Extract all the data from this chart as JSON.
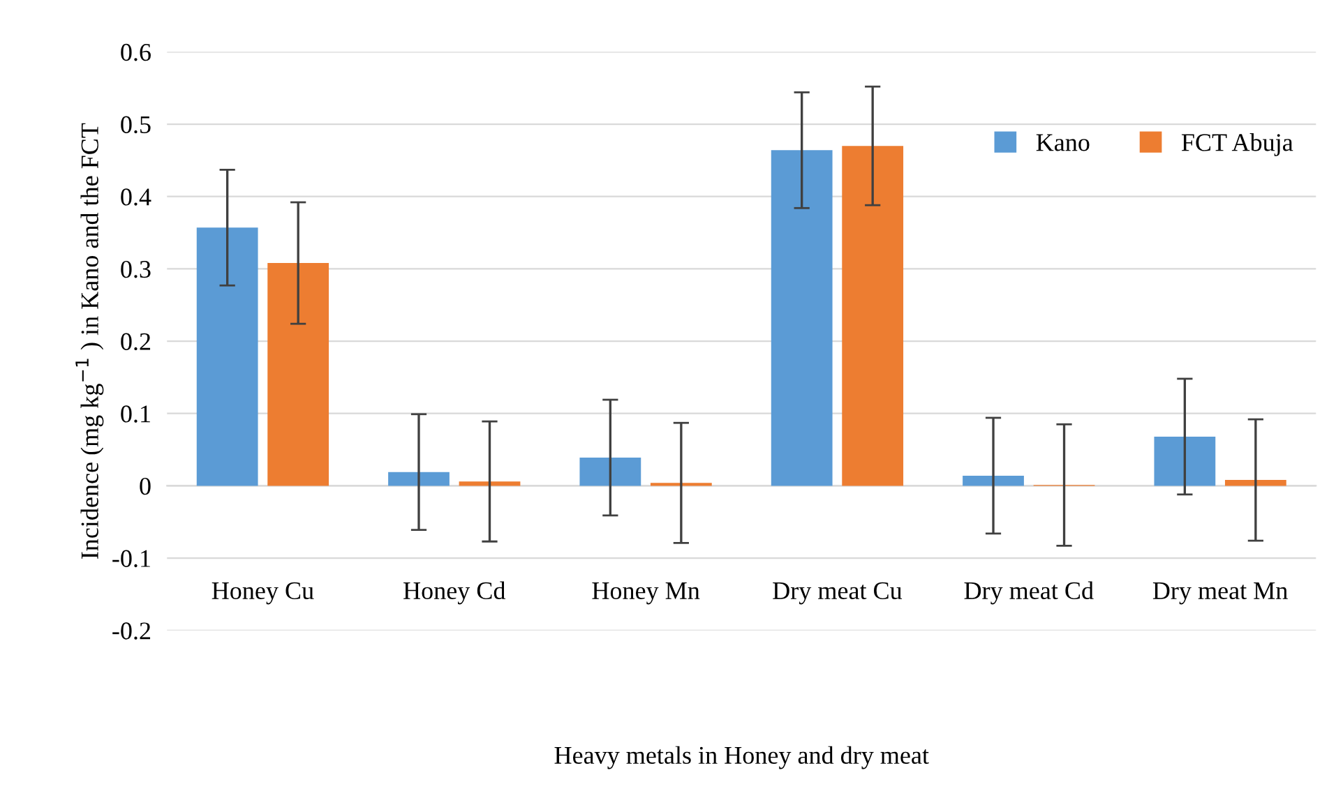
{
  "chart_data": {
    "type": "bar",
    "xlabel": "Heavy metals in Honey and dry meat",
    "ylabel": "Incidence (mg kg$^{−1}$ ) in Kano and the FCT",
    "categories": [
      "Honey Cu",
      "Honey Cd",
      "Honey Mn",
      "Dry meat Cu",
      "Dry meat Cd",
      "Dry meat Mn"
    ],
    "series": [
      {
        "name": "Kano",
        "color": "#5b9bd5",
        "values": [
          0.357,
          0.019,
          0.039,
          0.464,
          0.014,
          0.068
        ],
        "errors": [
          0.08,
          0.08,
          0.08,
          0.08,
          0.08,
          0.08
        ]
      },
      {
        "name": "FCT Abuja",
        "color": "#ed7d31",
        "values": [
          0.308,
          0.006,
          0.004,
          0.47,
          0.001,
          0.008
        ],
        "errors": [
          0.084,
          0.083,
          0.083,
          0.082,
          0.084,
          0.084
        ]
      }
    ],
    "ylim": [
      -0.2,
      0.6
    ],
    "yticks": [
      -0.2,
      -0.1,
      0,
      0.1,
      0.2,
      0.3,
      0.4,
      0.5,
      0.6
    ],
    "grid": "y",
    "legend": "top right"
  }
}
